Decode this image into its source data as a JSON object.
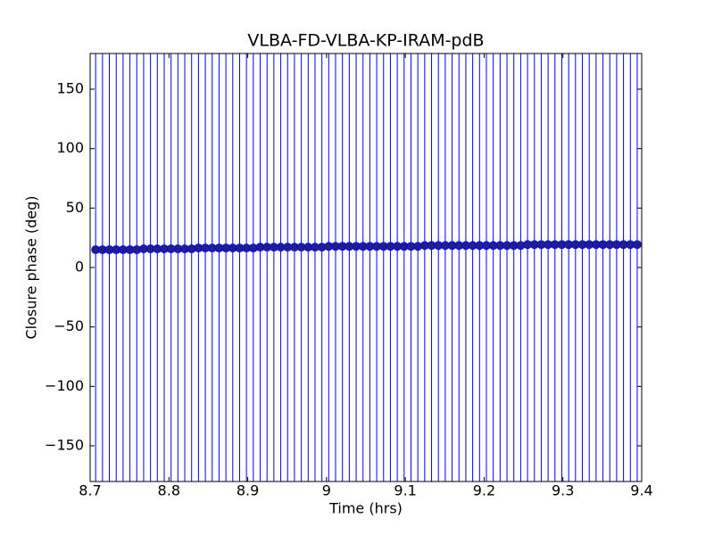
{
  "chart_data": {
    "type": "scatter",
    "title": "VLBA-FD-VLBA-KP-IRAM-pdB",
    "x_label": "Time (hrs)",
    "y_label": "Closure phase (deg)",
    "x": [
      8.707,
      8.7157,
      8.7244,
      8.7331,
      8.7418,
      8.7505,
      8.7592,
      8.7679,
      8.7766,
      8.7853,
      8.794,
      8.8027,
      8.8114,
      8.8201,
      8.8288,
      8.8375,
      8.8462,
      8.8549,
      8.8636,
      8.8723,
      8.881,
      8.8897,
      8.8984,
      8.9071,
      8.9158,
      8.9245,
      8.9332,
      8.9419,
      8.9506,
      8.9593,
      8.968,
      8.9767,
      8.9854,
      8.9941,
      9.0028,
      9.0115,
      9.0202,
      9.0289,
      9.0376,
      9.0463,
      9.055,
      9.0637,
      9.0724,
      9.0811,
      9.0898,
      9.0985,
      9.1072,
      9.1159,
      9.1246,
      9.1333,
      9.142,
      9.1507,
      9.1594,
      9.1681,
      9.1768,
      9.1855,
      9.1942,
      9.2029,
      9.2116,
      9.2203,
      9.229,
      9.2377,
      9.2464,
      9.2551,
      9.2638,
      9.2725,
      9.2812,
      9.2899,
      9.2986,
      9.3073,
      9.316,
      9.3247,
      9.3334,
      9.3421,
      9.3508,
      9.3595,
      9.3682,
      9.3769,
      9.3856,
      9.3943
    ],
    "values": [
      15.0,
      15.0,
      15.0,
      15.0,
      15.0,
      15.0,
      15.0,
      15.7,
      15.7,
      15.7,
      15.7,
      15.7,
      15.7,
      15.7,
      15.7,
      16.4,
      16.4,
      16.4,
      16.4,
      16.4,
      16.4,
      16.4,
      16.4,
      16.4,
      17.1,
      17.1,
      17.1,
      17.1,
      17.1,
      17.1,
      17.1,
      17.1,
      17.1,
      17.1,
      17.8,
      17.8,
      17.8,
      17.8,
      17.8,
      17.8,
      17.8,
      17.8,
      17.8,
      17.8,
      17.8,
      17.8,
      17.8,
      17.8,
      18.5,
      18.5,
      18.5,
      18.5,
      18.5,
      18.5,
      18.5,
      18.5,
      18.5,
      18.5,
      18.5,
      18.5,
      18.5,
      18.5,
      18.5,
      19.3,
      19.3,
      19.3,
      19.3,
      19.3,
      19.3,
      19.3,
      19.3,
      19.3,
      19.3,
      19.3,
      19.3,
      19.3,
      19.3,
      19.3,
      19.3,
      19.3
    ],
    "yerr": 200,
    "color": "#20208a",
    "error_color": "#0000ff",
    "xlim": [
      8.7,
      9.4
    ],
    "xticks": [
      8.7,
      8.8,
      8.9,
      9.0,
      9.1,
      9.2,
      9.3,
      9.4
    ],
    "ylim": [
      -180,
      180
    ],
    "yticks": [
      {
        "value": -150,
        "label": "−150"
      },
      {
        "value": -100,
        "label": "−100"
      },
      {
        "value": -50,
        "label": "−50"
      },
      0,
      50,
      100,
      150
    ]
  }
}
